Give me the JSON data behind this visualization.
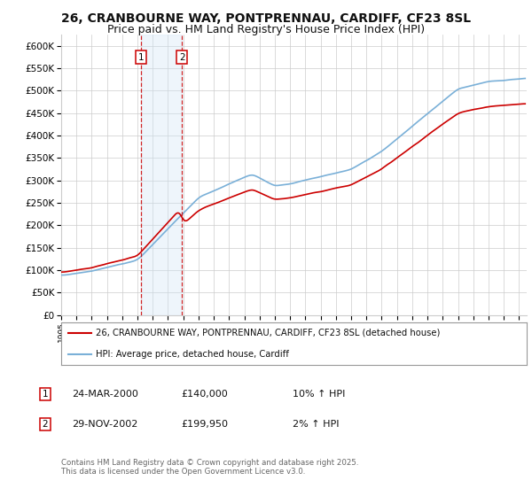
{
  "title": "26, CRANBOURNE WAY, PONTPRENNAU, CARDIFF, CF23 8SL",
  "subtitle": "Price paid vs. HM Land Registry's House Price Index (HPI)",
  "ylabel_ticks": [
    0,
    50000,
    100000,
    150000,
    200000,
    250000,
    300000,
    350000,
    400000,
    450000,
    500000,
    550000,
    600000
  ],
  "ylim": [
    0,
    625000
  ],
  "xlim_start": 1995.0,
  "xlim_end": 2025.5,
  "hpi_color": "#7ab0d8",
  "price_color": "#cc0000",
  "marker_dates": [
    2000.23,
    2002.91
  ],
  "marker_labels": [
    "1",
    "2"
  ],
  "marker_prices": [
    140000,
    199950
  ],
  "shade_color": "#cfe5f5",
  "legend_label_red": "26, CRANBOURNE WAY, PONTPRENNAU, CARDIFF, CF23 8SL (detached house)",
  "legend_label_blue": "HPI: Average price, detached house, Cardiff",
  "table_rows": [
    {
      "num": "1",
      "date": "24-MAR-2000",
      "price": "£140,000",
      "hpi": "10% ↑ HPI"
    },
    {
      "num": "2",
      "date": "29-NOV-2002",
      "price": "£199,950",
      "hpi": "2% ↑ HPI"
    }
  ],
  "footnote": "Contains HM Land Registry data © Crown copyright and database right 2025.\nThis data is licensed under the Open Government Licence v3.0.",
  "bg_color": "#ffffff",
  "grid_color": "#cccccc",
  "title_fontsize": 10,
  "subtitle_fontsize": 9
}
